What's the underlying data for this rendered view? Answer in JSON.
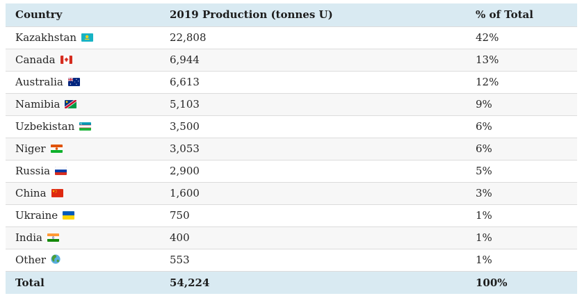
{
  "colors": {
    "header_bg": "#d9eaf2",
    "total_row_bg": "#d9eaf2",
    "alt_row_bg": "#f7f7f7",
    "row_border": "#dcdcdc",
    "text": "#252525"
  },
  "table": {
    "columns": [
      {
        "label": "Country"
      },
      {
        "label": "2019 Production (tonnes U)"
      },
      {
        "label": "% of Total"
      }
    ],
    "rows": [
      {
        "country": "Kazakhstan",
        "flag": "kz",
        "flag_icon": "kazakhstan-flag-icon",
        "production": "22,808",
        "percent": "42%"
      },
      {
        "country": "Canada",
        "flag": "ca",
        "flag_icon": "canada-flag-icon",
        "production": "6,944",
        "percent": "13%"
      },
      {
        "country": "Australia",
        "flag": "au",
        "flag_icon": "australia-flag-icon",
        "production": "6,613",
        "percent": "12%"
      },
      {
        "country": "Namibia",
        "flag": "na",
        "flag_icon": "namibia-flag-icon",
        "production": "5,103",
        "percent": "9%"
      },
      {
        "country": "Uzbekistan",
        "flag": "uz",
        "flag_icon": "uzbekistan-flag-icon",
        "production": "3,500",
        "percent": "6%"
      },
      {
        "country": "Niger",
        "flag": "ne",
        "flag_icon": "niger-flag-icon",
        "production": "3,053",
        "percent": "6%"
      },
      {
        "country": "Russia",
        "flag": "ru",
        "flag_icon": "russia-flag-icon",
        "production": "2,900",
        "percent": "5%"
      },
      {
        "country": "China",
        "flag": "cn",
        "flag_icon": "china-flag-icon",
        "production": "1,600",
        "percent": "3%"
      },
      {
        "country": "Ukraine",
        "flag": "ua",
        "flag_icon": "ukraine-flag-icon",
        "production": "750",
        "percent": "1%"
      },
      {
        "country": "India",
        "flag": "in",
        "flag_icon": "india-flag-icon",
        "production": "400",
        "percent": "1%"
      },
      {
        "country": "Other",
        "flag": "globe",
        "flag_icon": "globe-icon",
        "production": "553",
        "percent": "1%"
      }
    ],
    "total": {
      "label": "Total",
      "production": "54,224",
      "percent": "100%"
    }
  },
  "chart_data": {
    "type": "table",
    "columns": [
      "Country",
      "2019 Production (tonnes U)",
      "% of Total"
    ],
    "rows": [
      [
        "Kazakhstan",
        22808,
        "42%"
      ],
      [
        "Canada",
        6944,
        "13%"
      ],
      [
        "Australia",
        6613,
        "12%"
      ],
      [
        "Namibia",
        5103,
        "9%"
      ],
      [
        "Uzbekistan",
        3500,
        "6%"
      ],
      [
        "Niger",
        3053,
        "6%"
      ],
      [
        "Russia",
        2900,
        "5%"
      ],
      [
        "China",
        1600,
        "3%"
      ],
      [
        "Ukraine",
        750,
        "1%"
      ],
      [
        "India",
        400,
        "1%"
      ],
      [
        "Other",
        553,
        "1%"
      ]
    ],
    "total_row": [
      "Total",
      54224,
      "100%"
    ]
  }
}
